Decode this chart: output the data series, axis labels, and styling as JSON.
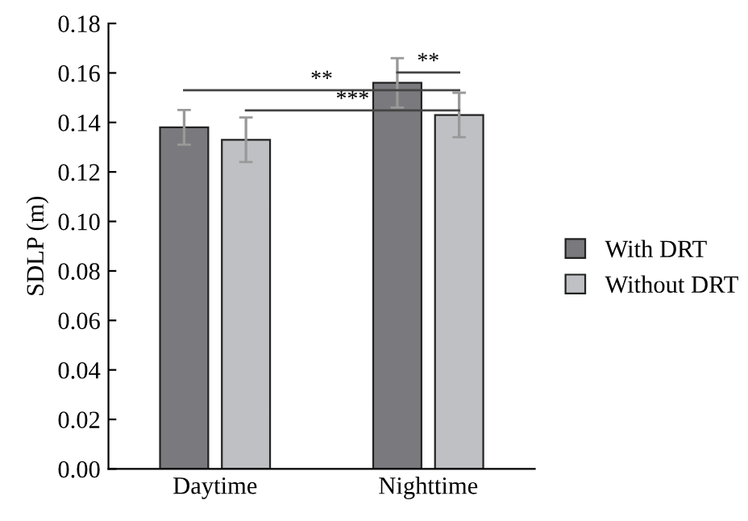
{
  "chart_data": {
    "type": "bar",
    "ylabel": "SDLP (m)",
    "categories": [
      "Daytime",
      "Nighttime"
    ],
    "series": [
      {
        "name": "With DRT",
        "color": "#7a7a7e",
        "values": [
          0.138,
          0.156
        ],
        "errors": [
          0.007,
          0.01
        ]
      },
      {
        "name": "Without DRT",
        "color": "#bfc0c4",
        "values": [
          0.133,
          0.143
        ],
        "errors": [
          0.009,
          0.009
        ]
      }
    ],
    "ylim": [
      0,
      0.18
    ],
    "yticks": [
      {
        "value": 0,
        "label": "0.00"
      },
      {
        "value": 0.02,
        "label": "0.02"
      },
      {
        "value": 0.04,
        "label": "0.04"
      },
      {
        "value": 0.06,
        "label": "0.06"
      },
      {
        "value": 0.08,
        "label": "0.08"
      },
      {
        "value": 0.1,
        "label": "0.10"
      },
      {
        "value": 0.12,
        "label": "0.12"
      },
      {
        "value": 0.14,
        "label": "0.14"
      },
      {
        "value": 0.16,
        "label": "0.16"
      },
      {
        "value": 0.18,
        "label": "0.18"
      }
    ],
    "annotations": [
      "**",
      "***",
      "**"
    ],
    "legend": "right",
    "grid": false
  }
}
